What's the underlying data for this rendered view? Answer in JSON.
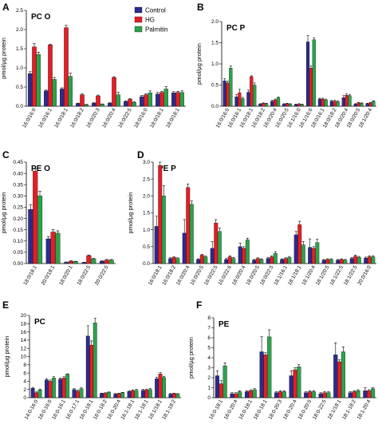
{
  "colors": {
    "control": "#2b2b8c",
    "hg": "#e21f26",
    "palmitin": "#2ca24a"
  },
  "legend": [
    "Control",
    "HG",
    "Palmitin"
  ],
  "chart_data": [
    {
      "id": "A",
      "title": "PC O",
      "type": "bar",
      "ylabel": "pmol/µg protein",
      "ylim": [
        0,
        2.5
      ],
      "yticks": [
        0,
        0.5,
        1.0,
        1.5,
        2.0,
        2.5
      ],
      "categories": [
        "16:0/16:0",
        "16:0/16:1",
        "16:0/18:1",
        "16:0/18:2",
        "16:0/20:3",
        "16:0/20:4",
        "16:0/22:5",
        "18:0/16:0",
        "18:0/18:1",
        "18:0/18:1"
      ],
      "series": [
        {
          "name": "Control",
          "values": [
            0.85,
            0.4,
            0.45,
            0.07,
            0.08,
            0.08,
            0.12,
            0.25,
            0.32,
            0.35
          ],
          "errors": [
            0.05,
            0.02,
            0.03,
            0.01,
            0.01,
            0.01,
            0.02,
            0.03,
            0.04,
            0.03
          ]
        },
        {
          "name": "HG",
          "values": [
            1.55,
            1.6,
            2.05,
            0.3,
            0.27,
            0.75,
            0.18,
            0.3,
            0.36,
            0.36
          ],
          "errors": [
            0.08,
            0.02,
            0.06,
            0.02,
            0.02,
            0.02,
            0.02,
            0.02,
            0.03,
            0.03
          ]
        },
        {
          "name": "Palmitin",
          "values": [
            1.35,
            0.7,
            0.78,
            0.04,
            0.05,
            0.3,
            0.1,
            0.35,
            0.45,
            0.36
          ],
          "errors": [
            0.06,
            0.05,
            0.08,
            0.01,
            0.01,
            0.06,
            0.02,
            0.05,
            0.06,
            0.04
          ]
        }
      ]
    },
    {
      "id": "B",
      "title": "PC P",
      "type": "bar",
      "ylabel": "pmol/µg protein",
      "ylim": [
        0,
        2.0
      ],
      "yticks": [
        0,
        0.5,
        1.0,
        1.5,
        2.0
      ],
      "categories": [
        "16:0/16:0",
        "16:0/16:1",
        "16:0/18:1",
        "16:0/18:2",
        "16:0/20:4",
        "16:0/20:5",
        "16:1/16:0",
        "16:1/16:0",
        "18:0/16:1",
        "18:0/18:2",
        "18:0/20:4",
        "18:0/20:5",
        "18:1/20:4"
      ],
      "series": [
        {
          "name": "Control",
          "values": [
            0.6,
            0.22,
            0.33,
            0.05,
            0.12,
            0.05,
            0.04,
            1.52,
            0.17,
            0.12,
            0.2,
            0.05,
            0.06
          ],
          "errors": [
            0.05,
            0.05,
            0.05,
            0.01,
            0.02,
            0.01,
            0.01,
            0.15,
            0.02,
            0.02,
            0.05,
            0.01,
            0.01
          ]
        },
        {
          "name": "HG",
          "values": [
            0.55,
            0.32,
            0.7,
            0.07,
            0.15,
            0.06,
            0.05,
            0.9,
            0.17,
            0.12,
            0.26,
            0.08,
            0.08
          ],
          "errors": [
            0.04,
            0.08,
            0.02,
            0.01,
            0.02,
            0.01,
            0.01,
            0.05,
            0.02,
            0.02,
            0.03,
            0.01,
            0.01
          ]
        },
        {
          "name": "Palmitin",
          "values": [
            0.9,
            0.18,
            0.5,
            0.06,
            0.2,
            0.05,
            0.04,
            1.57,
            0.15,
            0.11,
            0.25,
            0.07,
            0.12
          ],
          "errors": [
            0.05,
            0.03,
            0.05,
            0.01,
            0.02,
            0.01,
            0.01,
            0.05,
            0.02,
            0.02,
            0.03,
            0.01,
            0.01
          ]
        }
      ]
    },
    {
      "id": "C",
      "title": "PE O",
      "type": "bar",
      "ylabel": "pmol/µg protein",
      "ylim": [
        0,
        0.45
      ],
      "yticks": [
        0,
        0.05,
        0.1,
        0.15,
        0.2,
        0.25,
        0.3,
        0.35,
        0.4,
        0.45
      ],
      "categories": [
        "18:0/18:1",
        "20:0/18:1",
        "18:0/20:1",
        "18:0/22:5",
        "20:0/22:5"
      ],
      "series": [
        {
          "name": "Control",
          "values": [
            0.24,
            0.11,
            0.005,
            0.004,
            0.01
          ],
          "errors": [
            0.02,
            0.01,
            0.002,
            0.002,
            0.002
          ]
        },
        {
          "name": "HG",
          "values": [
            0.41,
            0.14,
            0.01,
            0.035,
            0.015
          ],
          "errors": [
            0.01,
            0.01,
            0.003,
            0.003,
            0.003
          ]
        },
        {
          "name": "Palmitin",
          "values": [
            0.3,
            0.135,
            0.008,
            0.02,
            0.015
          ],
          "errors": [
            0.02,
            0.01,
            0.002,
            0.003,
            0.003
          ]
        }
      ]
    },
    {
      "id": "D",
      "title": "PE P",
      "type": "bar",
      "ylabel": "pmol/µg protein",
      "ylim": [
        0,
        3.0
      ],
      "yticks": [
        0,
        0.5,
        1.0,
        1.5,
        2.0,
        2.5,
        3.0
      ],
      "categories": [
        "16:0/18:1",
        "16:0/18:2",
        "16:0/20:4",
        "16:0/20:5",
        "16:0/22:5",
        "16:0/22:6",
        "18:0/20:4",
        "18:0/20:5",
        "18:0/22:5",
        "18:1/16:1",
        "18:1/18:1",
        "18:1/20:4",
        "18:1/20:5",
        "18:1/22:5",
        "18:1/22:5",
        "20:0/16:0"
      ],
      "series": [
        {
          "name": "Control",
          "values": [
            1.1,
            0.15,
            0.9,
            0.12,
            0.45,
            0.12,
            0.5,
            0.1,
            0.15,
            0.12,
            0.85,
            0.48,
            0.1,
            0.1,
            0.15,
            0.16
          ],
          "errors": [
            0.3,
            0.02,
            0.4,
            0.02,
            0.2,
            0.03,
            0.1,
            0.02,
            0.03,
            0.02,
            0.1,
            0.25,
            0.02,
            0.02,
            0.03,
            0.03
          ]
        },
        {
          "name": "HG",
          "values": [
            2.9,
            0.18,
            2.25,
            0.25,
            1.2,
            0.2,
            0.45,
            0.15,
            0.2,
            0.15,
            1.15,
            0.45,
            0.12,
            0.12,
            0.22,
            0.2
          ],
          "errors": [
            0.1,
            0.02,
            0.1,
            0.02,
            0.1,
            0.03,
            0.05,
            0.02,
            0.03,
            0.02,
            0.1,
            0.05,
            0.02,
            0.02,
            0.03,
            0.03
          ]
        },
        {
          "name": "Palmitin",
          "values": [
            2.0,
            0.15,
            1.75,
            0.2,
            0.95,
            0.15,
            0.7,
            0.12,
            0.3,
            0.18,
            0.55,
            0.62,
            0.12,
            0.1,
            0.18,
            0.2
          ],
          "errors": [
            0.3,
            0.02,
            0.1,
            0.02,
            0.1,
            0.03,
            0.05,
            0.02,
            0.05,
            0.03,
            0.1,
            0.1,
            0.02,
            0.02,
            0.03,
            0.03
          ]
        }
      ]
    },
    {
      "id": "E",
      "title": "PC",
      "type": "bar",
      "ylabel": "pmol/µg protein",
      "ylim": [
        0,
        20
      ],
      "yticks": [
        0,
        2,
        4,
        6,
        8,
        10,
        12,
        14,
        16,
        18,
        20
      ],
      "categories": [
        "14:0-16:0",
        "16:0-16:0",
        "16:0-16:1",
        "16:0-17:1",
        "16:0-18:1",
        "16:0-18:2",
        "16:0-20:4",
        "16:1-18:1",
        "16:1-18:1",
        "18:1/18:1",
        "18:1-18:2"
      ],
      "series": [
        {
          "name": "Control",
          "values": [
            2.3,
            4.3,
            4.5,
            2.0,
            15.0,
            1.0,
            0.9,
            1.5,
            1.8,
            4.6,
            0.9
          ],
          "errors": [
            0.2,
            0.3,
            0.3,
            0.2,
            2.5,
            0.1,
            0.1,
            0.2,
            0.2,
            0.4,
            0.1
          ]
        },
        {
          "name": "HG",
          "values": [
            1.2,
            4.0,
            4.8,
            1.6,
            12.8,
            1.1,
            1.0,
            1.7,
            1.9,
            5.8,
            1.0
          ],
          "errors": [
            0.2,
            0.3,
            0.3,
            0.2,
            1.0,
            0.1,
            0.1,
            0.2,
            0.2,
            0.3,
            0.1
          ]
        },
        {
          "name": "Palmitin",
          "values": [
            1.9,
            4.8,
            5.7,
            2.2,
            18.2,
            1.3,
            1.2,
            1.8,
            2.0,
            4.9,
            0.9
          ],
          "errors": [
            0.2,
            0.3,
            0.1,
            0.2,
            1.1,
            0.1,
            0.1,
            0.2,
            0.2,
            0.3,
            0.1
          ]
        }
      ]
    },
    {
      "id": "F",
      "title": "PE",
      "type": "bar",
      "ylabel": "pmol/µg protein",
      "ylim": [
        0,
        8
      ],
      "yticks": [
        0,
        1,
        2,
        3,
        4,
        5,
        6,
        7,
        8
      ],
      "categories": [
        "16:0-18:1",
        "16:0-20:4",
        "16:0-18:1",
        "18:0-18:1",
        "18:0-20:3",
        "18:0-20:4",
        "18:0-20:5",
        "18:0-22:5",
        "18:1/18:1",
        "18:1-18:2",
        "18:1-20:4"
      ],
      "series": [
        {
          "name": "Control",
          "values": [
            2.2,
            0.4,
            0.6,
            4.6,
            0.5,
            2.2,
            0.5,
            0.4,
            4.3,
            0.5,
            0.7
          ],
          "errors": [
            0.5,
            0.1,
            0.1,
            1.5,
            0.1,
            0.5,
            0.1,
            0.1,
            1.2,
            0.1,
            0.3
          ]
        },
        {
          "name": "HG",
          "values": [
            1.4,
            0.4,
            0.7,
            4.3,
            0.6,
            2.8,
            0.6,
            0.5,
            3.6,
            0.6,
            0.7
          ],
          "errors": [
            0.3,
            0.1,
            0.1,
            0.2,
            0.1,
            0.2,
            0.1,
            0.1,
            0.2,
            0.1,
            0.1
          ]
        },
        {
          "name": "Palmitin",
          "values": [
            3.2,
            0.6,
            0.8,
            6.1,
            0.6,
            3.1,
            0.6,
            0.5,
            4.6,
            0.7,
            0.9
          ],
          "errors": [
            0.3,
            0.1,
            0.1,
            0.7,
            0.1,
            0.2,
            0.1,
            0.1,
            0.5,
            0.1,
            0.1
          ]
        }
      ]
    }
  ]
}
